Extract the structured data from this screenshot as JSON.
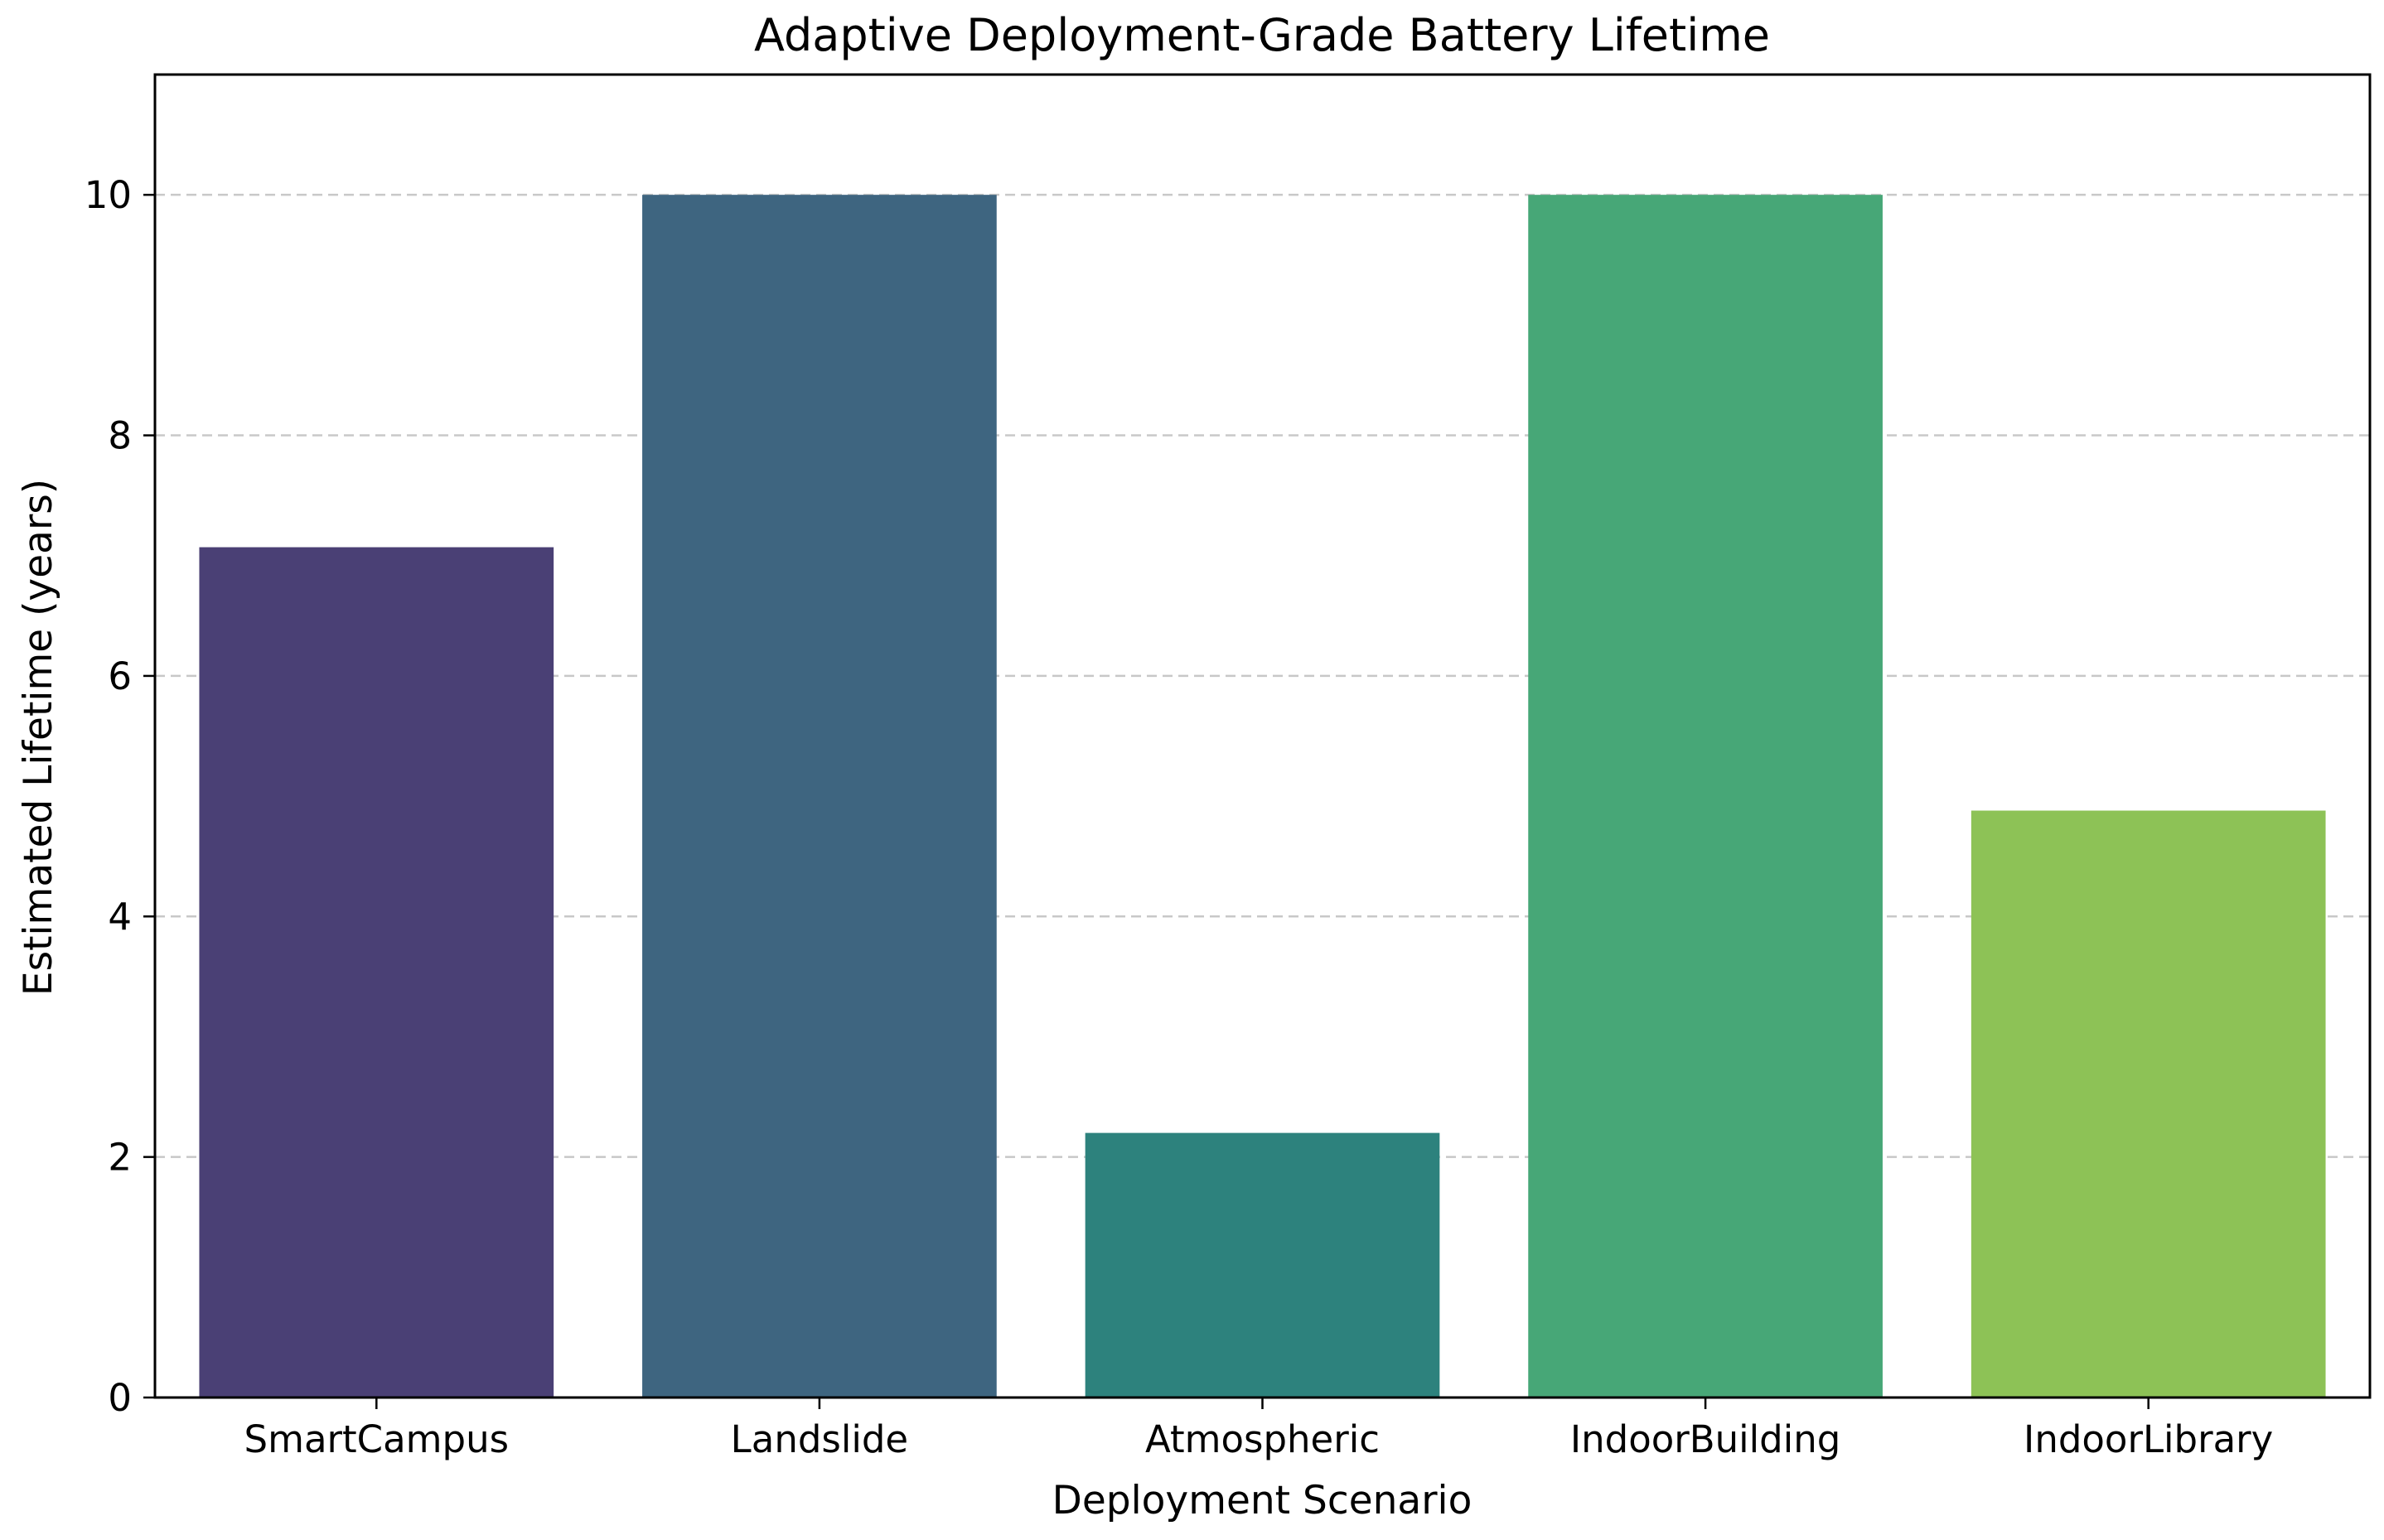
{
  "chart_data": {
    "type": "bar",
    "title": "Adaptive Deployment-Grade Battery Lifetime",
    "xlabel": "Deployment Scenario",
    "ylabel": "Estimated Lifetime (years)",
    "categories": [
      "SmartCampus",
      "Landslide",
      "Atmospheric",
      "IndoorBuilding",
      "IndoorLibrary"
    ],
    "values": [
      7.07,
      10.0,
      2.2,
      10.0,
      4.88
    ],
    "colors": [
      "#4a4075",
      "#3e6580",
      "#2d827d",
      "#47a777",
      "#8dc256"
    ],
    "ylim": [
      0,
      11
    ],
    "yticks": [
      0,
      2,
      4,
      6,
      8,
      10
    ],
    "grid": "y-dashed",
    "legend": "none"
  }
}
